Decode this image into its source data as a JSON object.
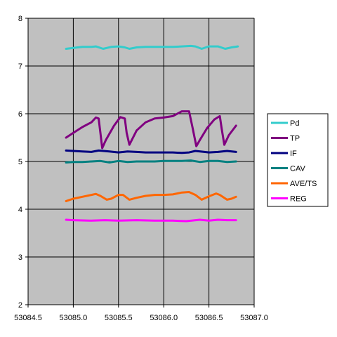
{
  "chart_data": {
    "type": "line",
    "title": "",
    "xlabel": "",
    "ylabel": "",
    "xlim": [
      53084.5,
      53087.0
    ],
    "ylim": [
      2,
      8
    ],
    "x_ticks": [
      "53084.5",
      "53085.0",
      "53085.5",
      "53086.0",
      "53086.5",
      "53087.0"
    ],
    "y_ticks": [
      "2",
      "3",
      "4",
      "5",
      "6",
      "7",
      "8"
    ],
    "grid": true,
    "legend_position": "right",
    "colors": {
      "plot_background": "#c0c0c0",
      "grid": "#000000"
    },
    "series": [
      {
        "name": "Pd",
        "color": "#33cccc",
        "x": [
          53084.92,
          53085.0,
          53085.1,
          53085.2,
          53085.25,
          53085.33,
          53085.42,
          53085.5,
          53085.57,
          53085.62,
          53085.7,
          53085.8,
          53085.9,
          53086.0,
          53086.1,
          53086.2,
          53086.3,
          53086.35,
          53086.42,
          53086.5,
          53086.6,
          53086.68,
          53086.75,
          53086.82
        ],
        "y": [
          7.36,
          7.38,
          7.4,
          7.4,
          7.41,
          7.36,
          7.4,
          7.41,
          7.39,
          7.36,
          7.39,
          7.4,
          7.4,
          7.4,
          7.4,
          7.41,
          7.42,
          7.41,
          7.36,
          7.41,
          7.41,
          7.36,
          7.39,
          7.41
        ]
      },
      {
        "name": "TP",
        "color": "#800080",
        "x": [
          53084.92,
          53085.0,
          53085.1,
          53085.2,
          53085.25,
          53085.28,
          53085.3,
          53085.32,
          53085.36,
          53085.45,
          53085.52,
          53085.57,
          53085.59,
          53085.62,
          53085.7,
          53085.8,
          53085.9,
          53086.0,
          53086.1,
          53086.2,
          53086.28,
          53086.32,
          53086.36,
          53086.4,
          53086.48,
          53086.56,
          53086.62,
          53086.64,
          53086.67,
          53086.72,
          53086.8
        ],
        "y": [
          5.5,
          5.6,
          5.72,
          5.82,
          5.92,
          5.9,
          5.6,
          5.28,
          5.45,
          5.75,
          5.93,
          5.9,
          5.6,
          5.35,
          5.65,
          5.82,
          5.9,
          5.92,
          5.95,
          6.05,
          6.05,
          5.7,
          5.32,
          5.45,
          5.7,
          5.88,
          5.95,
          5.7,
          5.35,
          5.55,
          5.75
        ]
      },
      {
        "name": "IF",
        "color": "#000080",
        "x": [
          53084.92,
          53085.0,
          53085.1,
          53085.2,
          53085.28,
          53085.4,
          53085.5,
          53085.6,
          53085.7,
          53085.8,
          53085.9,
          53086.0,
          53086.1,
          53086.2,
          53086.28,
          53086.35,
          53086.45,
          53086.5,
          53086.6,
          53086.7,
          53086.8
        ],
        "y": [
          5.23,
          5.22,
          5.21,
          5.2,
          5.23,
          5.21,
          5.19,
          5.21,
          5.2,
          5.19,
          5.19,
          5.19,
          5.19,
          5.18,
          5.19,
          5.22,
          5.2,
          5.19,
          5.2,
          5.22,
          5.2
        ]
      },
      {
        "name": "CAV",
        "color": "#008080",
        "x": [
          53084.92,
          53085.0,
          53085.1,
          53085.2,
          53085.3,
          53085.4,
          53085.5,
          53085.6,
          53085.7,
          53085.8,
          53085.9,
          53086.0,
          53086.1,
          53086.2,
          53086.3,
          53086.4,
          53086.5,
          53086.6,
          53086.7,
          53086.8
        ],
        "y": [
          4.98,
          4.99,
          4.99,
          5.0,
          5.01,
          4.98,
          5.01,
          4.99,
          5.0,
          5.0,
          5.0,
          5.01,
          5.01,
          5.01,
          5.02,
          4.99,
          5.01,
          5.01,
          4.99,
          5.0
        ]
      },
      {
        "name": "AVE/TS",
        "color": "#ff6600",
        "x": [
          53084.92,
          53085.0,
          53085.1,
          53085.2,
          53085.25,
          53085.3,
          53085.37,
          53085.42,
          53085.5,
          53085.55,
          53085.62,
          53085.7,
          53085.8,
          53085.9,
          53086.0,
          53086.1,
          53086.2,
          53086.28,
          53086.35,
          53086.42,
          53086.5,
          53086.58,
          53086.62,
          53086.7,
          53086.75,
          53086.8
        ],
        "y": [
          4.17,
          4.22,
          4.26,
          4.3,
          4.32,
          4.28,
          4.2,
          4.22,
          4.3,
          4.3,
          4.2,
          4.24,
          4.28,
          4.3,
          4.3,
          4.31,
          4.35,
          4.36,
          4.3,
          4.2,
          4.27,
          4.33,
          4.3,
          4.2,
          4.22,
          4.26
        ]
      },
      {
        "name": "REG",
        "color": "#ff00ff",
        "x": [
          53084.92,
          53085.0,
          53085.2,
          53085.35,
          53085.5,
          53085.7,
          53085.9,
          53086.1,
          53086.25,
          53086.4,
          53086.5,
          53086.6,
          53086.7,
          53086.8
        ],
        "y": [
          3.78,
          3.77,
          3.76,
          3.77,
          3.76,
          3.77,
          3.76,
          3.76,
          3.75,
          3.78,
          3.76,
          3.78,
          3.77,
          3.77
        ]
      }
    ]
  }
}
